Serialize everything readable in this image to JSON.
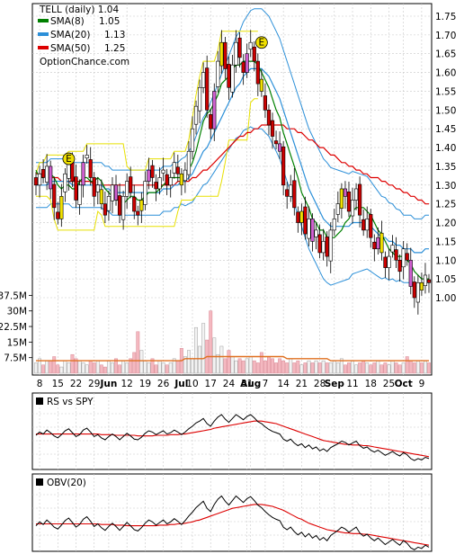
{
  "chart_data": [
    {
      "type": "candlestick",
      "title": "TELL (daily) 1.04",
      "watermark": "OptionChance.com",
      "legend_position": "top-left",
      "grid": true,
      "ylim": [
        0.93,
        1.78
      ],
      "yticks": [
        1.75,
        1.7,
        1.65,
        1.6,
        1.55,
        1.5,
        1.45,
        1.4,
        1.35,
        1.3,
        1.25,
        1.2,
        1.15,
        1.1,
        1.05,
        1.0
      ],
      "xticks": [
        {
          "label": "8",
          "i": 1
        },
        {
          "label": "15",
          "i": 6
        },
        {
          "label": "22",
          "i": 11
        },
        {
          "label": "29",
          "i": 16
        },
        {
          "label": "Jun",
          "i": 20,
          "bold": true
        },
        {
          "label": "12",
          "i": 25
        },
        {
          "label": "19",
          "i": 30
        },
        {
          "label": "26",
          "i": 35
        },
        {
          "label": "Jul",
          "i": 40,
          "bold": true
        },
        {
          "label": "10",
          "i": 43
        },
        {
          "label": "17",
          "i": 48
        },
        {
          "label": "24",
          "i": 53
        },
        {
          "label": "31",
          "i": 58
        },
        {
          "label": "Aug",
          "i": 59,
          "bold": true
        },
        {
          "label": "7",
          "i": 63
        },
        {
          "label": "14",
          "i": 68
        },
        {
          "label": "21",
          "i": 73
        },
        {
          "label": "28",
          "i": 78
        },
        {
          "label": "Sep",
          "i": 82,
          "bold": true
        },
        {
          "label": "11",
          "i": 87
        },
        {
          "label": "18",
          "i": 92
        },
        {
          "label": "25",
          "i": 97
        },
        {
          "label": "Oct",
          "i": 101,
          "bold": true
        },
        {
          "label": "9",
          "i": 106
        }
      ],
      "events": [
        {
          "label": "E",
          "i": 9,
          "price": 1.37
        },
        {
          "label": "E",
          "i": 62,
          "price": 1.68
        }
      ],
      "series": [
        {
          "name": "SMA(8)",
          "last": "1.05",
          "color": "#008000"
        },
        {
          "name": "SMA(20)",
          "last": "1.13",
          "color": "#2b8fd8"
        },
        {
          "name": "SMA(50)",
          "last": "1.25",
          "color": "#dd0000"
        }
      ],
      "close": [
        1.3,
        1.33,
        1.32,
        1.35,
        1.29,
        1.24,
        1.21,
        1.27,
        1.33,
        1.36,
        1.31,
        1.26,
        1.3,
        1.36,
        1.38,
        1.32,
        1.27,
        1.3,
        1.25,
        1.22,
        1.27,
        1.3,
        1.26,
        1.22,
        1.27,
        1.31,
        1.28,
        1.23,
        1.22,
        1.26,
        1.31,
        1.34,
        1.32,
        1.29,
        1.32,
        1.34,
        1.3,
        1.32,
        1.36,
        1.33,
        1.3,
        1.34,
        1.39,
        1.45,
        1.51,
        1.56,
        1.6,
        1.5,
        1.45,
        1.55,
        1.63,
        1.68,
        1.61,
        1.56,
        1.62,
        1.68,
        1.64,
        1.6,
        1.65,
        1.68,
        1.63,
        1.57,
        1.55,
        1.5,
        1.46,
        1.43,
        1.41,
        1.39,
        1.3,
        1.27,
        1.3,
        1.24,
        1.2,
        1.23,
        1.17,
        1.21,
        1.15,
        1.18,
        1.12,
        1.15,
        1.11,
        1.18,
        1.21,
        1.25,
        1.29,
        1.27,
        1.23,
        1.26,
        1.29,
        1.22,
        1.18,
        1.21,
        1.16,
        1.13,
        1.16,
        1.12,
        1.08,
        1.11,
        1.14,
        1.1,
        1.07,
        1.13,
        1.1,
        1.03,
        1.0,
        1.04,
        1.02,
        1.06,
        1.04
      ],
      "sma8": [
        1.34,
        1.32,
        1.32,
        1.33,
        1.33,
        1.32,
        1.3,
        1.29,
        1.3,
        1.3,
        1.29,
        1.29,
        1.31,
        1.32,
        1.32,
        1.31,
        1.31,
        1.32,
        1.31,
        1.29,
        1.28,
        1.27,
        1.26,
        1.26,
        1.25,
        1.26,
        1.27,
        1.27,
        1.26,
        1.26,
        1.27,
        1.28,
        1.28,
        1.28,
        1.29,
        1.3,
        1.31,
        1.32,
        1.32,
        1.32,
        1.32,
        1.33,
        1.34,
        1.36,
        1.39,
        1.43,
        1.47,
        1.49,
        1.5,
        1.52,
        1.54,
        1.57,
        1.58,
        1.59,
        1.61,
        1.62,
        1.62,
        1.63,
        1.63,
        1.63,
        1.63,
        1.62,
        1.6,
        1.58,
        1.56,
        1.53,
        1.5,
        1.48,
        1.44,
        1.41,
        1.38,
        1.35,
        1.32,
        1.28,
        1.26,
        1.24,
        1.21,
        1.2,
        1.18,
        1.18,
        1.16,
        1.16,
        1.16,
        1.17,
        1.18,
        1.2,
        1.21,
        1.23,
        1.24,
        1.24,
        1.24,
        1.23,
        1.22,
        1.2,
        1.18,
        1.17,
        1.15,
        1.13,
        1.12,
        1.11,
        1.11,
        1.11,
        1.1,
        1.09,
        1.07,
        1.06,
        1.05,
        1.05,
        1.05
      ],
      "sma20": [
        1.3,
        1.3,
        1.3,
        1.3,
        1.31,
        1.31,
        1.31,
        1.31,
        1.31,
        1.31,
        1.3,
        1.3,
        1.3,
        1.3,
        1.3,
        1.3,
        1.3,
        1.3,
        1.3,
        1.29,
        1.29,
        1.28,
        1.28,
        1.28,
        1.28,
        1.28,
        1.28,
        1.28,
        1.28,
        1.28,
        1.28,
        1.28,
        1.28,
        1.28,
        1.28,
        1.29,
        1.29,
        1.29,
        1.3,
        1.3,
        1.31,
        1.31,
        1.32,
        1.33,
        1.35,
        1.37,
        1.39,
        1.4,
        1.42,
        1.44,
        1.46,
        1.48,
        1.5,
        1.52,
        1.54,
        1.56,
        1.57,
        1.59,
        1.6,
        1.61,
        1.61,
        1.61,
        1.61,
        1.6,
        1.59,
        1.57,
        1.55,
        1.53,
        1.5,
        1.47,
        1.44,
        1.41,
        1.38,
        1.35,
        1.32,
        1.29,
        1.27,
        1.25,
        1.23,
        1.21,
        1.2,
        1.19,
        1.19,
        1.19,
        1.19,
        1.19,
        1.19,
        1.2,
        1.2,
        1.2,
        1.2,
        1.2,
        1.19,
        1.18,
        1.17,
        1.16,
        1.16,
        1.15,
        1.15,
        1.14,
        1.14,
        1.13,
        1.13,
        1.13,
        1.12,
        1.12,
        1.12,
        1.13,
        1.13
      ],
      "sma50": [
        1.33,
        1.33,
        1.33,
        1.32,
        1.32,
        1.32,
        1.32,
        1.31,
        1.31,
        1.31,
        1.31,
        1.31,
        1.31,
        1.31,
        1.31,
        1.31,
        1.3,
        1.3,
        1.3,
        1.3,
        1.3,
        1.3,
        1.3,
        1.3,
        1.3,
        1.3,
        1.3,
        1.3,
        1.3,
        1.3,
        1.3,
        1.3,
        1.3,
        1.3,
        1.3,
        1.3,
        1.3,
        1.3,
        1.3,
        1.31,
        1.31,
        1.31,
        1.31,
        1.32,
        1.32,
        1.33,
        1.34,
        1.34,
        1.35,
        1.36,
        1.37,
        1.38,
        1.39,
        1.4,
        1.41,
        1.42,
        1.43,
        1.43,
        1.44,
        1.44,
        1.45,
        1.45,
        1.46,
        1.46,
        1.46,
        1.46,
        1.46,
        1.46,
        1.46,
        1.45,
        1.45,
        1.45,
        1.44,
        1.44,
        1.43,
        1.42,
        1.42,
        1.41,
        1.4,
        1.4,
        1.39,
        1.38,
        1.38,
        1.37,
        1.36,
        1.36,
        1.35,
        1.35,
        1.34,
        1.34,
        1.33,
        1.33,
        1.32,
        1.32,
        1.32,
        1.31,
        1.31,
        1.3,
        1.3,
        1.29,
        1.29,
        1.28,
        1.28,
        1.27,
        1.27,
        1.26,
        1.26,
        1.25,
        1.25
      ]
    },
    {
      "type": "bar",
      "yticks": [
        "37.5M",
        "30M",
        "22.5M",
        "15M",
        "7.5M"
      ],
      "ytick_values": [
        37.5,
        30,
        22.5,
        15,
        7.5
      ],
      "ylim": [
        0,
        42
      ],
      "values": [
        5,
        7,
        4,
        6,
        6,
        8,
        4,
        3,
        6,
        5,
        9,
        7,
        6,
        5,
        4,
        6,
        5,
        6,
        4,
        3,
        6,
        5,
        7,
        4,
        6,
        5,
        7,
        10,
        20,
        11,
        6,
        5,
        7,
        4,
        6,
        5,
        4,
        5,
        7,
        6,
        12,
        8,
        11,
        7,
        22,
        13,
        24,
        16,
        30,
        17,
        9,
        13,
        7,
        11,
        8,
        6,
        7,
        6,
        7,
        8,
        6,
        5,
        10,
        6,
        8,
        7,
        5,
        7,
        6,
        5,
        7,
        5,
        6,
        4,
        5,
        6,
        5,
        6,
        5,
        6,
        5,
        5,
        6,
        5,
        7,
        4,
        5,
        6,
        4,
        5,
        6,
        5,
        4,
        5,
        6,
        4,
        5,
        4,
        6,
        5,
        4,
        5,
        8,
        6,
        5,
        6,
        5,
        6,
        5
      ],
      "avg": [
        6,
        6,
        6,
        6,
        6,
        6,
        6,
        6,
        6,
        6,
        6,
        6,
        6,
        6,
        6,
        6,
        6,
        6,
        6,
        6,
        6,
        6,
        6,
        6,
        6,
        6,
        6,
        6,
        6,
        6,
        6,
        6,
        6,
        6,
        6,
        6,
        6,
        6,
        6,
        6,
        6,
        7,
        7,
        7,
        7,
        7,
        7,
        8,
        8,
        8,
        8,
        8,
        8,
        8,
        8,
        8,
        8,
        8,
        8,
        8,
        8,
        8,
        8,
        8,
        8,
        8,
        8,
        8,
        8,
        7,
        7,
        7,
        7,
        7,
        7,
        7,
        7,
        7,
        7,
        7,
        7,
        6,
        6,
        6,
        6,
        6,
        6,
        6,
        6,
        6,
        6,
        6,
        6,
        6,
        6,
        6,
        6,
        6,
        6,
        6,
        6,
        6,
        6,
        6,
        6,
        6,
        6,
        6,
        6
      ]
    },
    {
      "type": "line",
      "legend": "RS vs SPY",
      "values": [
        0.5,
        0.55,
        0.52,
        0.58,
        0.54,
        0.49,
        0.46,
        0.51,
        0.57,
        0.6,
        0.54,
        0.48,
        0.51,
        0.58,
        0.61,
        0.55,
        0.48,
        0.51,
        0.46,
        0.43,
        0.48,
        0.52,
        0.48,
        0.43,
        0.48,
        0.53,
        0.49,
        0.44,
        0.43,
        0.47,
        0.53,
        0.57,
        0.55,
        0.51,
        0.54,
        0.57,
        0.52,
        0.54,
        0.58,
        0.55,
        0.51,
        0.55,
        0.6,
        0.64,
        0.69,
        0.72,
        0.76,
        0.68,
        0.64,
        0.72,
        0.78,
        0.82,
        0.75,
        0.7,
        0.76,
        0.82,
        0.78,
        0.74,
        0.79,
        0.82,
        0.77,
        0.71,
        0.68,
        0.63,
        0.59,
        0.56,
        0.54,
        0.52,
        0.44,
        0.41,
        0.44,
        0.38,
        0.34,
        0.37,
        0.31,
        0.35,
        0.29,
        0.32,
        0.26,
        0.29,
        0.25,
        0.31,
        0.34,
        0.37,
        0.41,
        0.39,
        0.35,
        0.38,
        0.41,
        0.34,
        0.3,
        0.32,
        0.27,
        0.24,
        0.27,
        0.23,
        0.19,
        0.22,
        0.25,
        0.21,
        0.18,
        0.23,
        0.2,
        0.14,
        0.11,
        0.14,
        0.12,
        0.16,
        0.14
      ],
      "ma": [
        0.52,
        0.52,
        0.52,
        0.52,
        0.52,
        0.52,
        0.52,
        0.52,
        0.52,
        0.52,
        0.52,
        0.52,
        0.52,
        0.52,
        0.52,
        0.52,
        0.52,
        0.52,
        0.51,
        0.51,
        0.51,
        0.51,
        0.5,
        0.5,
        0.5,
        0.5,
        0.5,
        0.5,
        0.49,
        0.49,
        0.49,
        0.49,
        0.49,
        0.5,
        0.5,
        0.5,
        0.5,
        0.51,
        0.51,
        0.51,
        0.52,
        0.52,
        0.53,
        0.54,
        0.55,
        0.56,
        0.57,
        0.58,
        0.59,
        0.61,
        0.62,
        0.63,
        0.64,
        0.65,
        0.66,
        0.67,
        0.68,
        0.69,
        0.7,
        0.71,
        0.72,
        0.72,
        0.72,
        0.71,
        0.7,
        0.69,
        0.68,
        0.66,
        0.64,
        0.62,
        0.6,
        0.58,
        0.56,
        0.54,
        0.52,
        0.5,
        0.48,
        0.46,
        0.44,
        0.42,
        0.41,
        0.4,
        0.39,
        0.38,
        0.37,
        0.36,
        0.36,
        0.35,
        0.35,
        0.35,
        0.34,
        0.34,
        0.33,
        0.32,
        0.31,
        0.3,
        0.29,
        0.28,
        0.27,
        0.26,
        0.25,
        0.24,
        0.23,
        0.22,
        0.21,
        0.2,
        0.19,
        0.18,
        0.17
      ]
    },
    {
      "type": "line",
      "legend": "OBV(20)",
      "values": [
        0.38,
        0.44,
        0.4,
        0.47,
        0.42,
        0.36,
        0.33,
        0.39,
        0.46,
        0.5,
        0.43,
        0.36,
        0.4,
        0.48,
        0.52,
        0.45,
        0.37,
        0.41,
        0.35,
        0.31,
        0.37,
        0.42,
        0.37,
        0.31,
        0.37,
        0.43,
        0.38,
        0.32,
        0.3,
        0.35,
        0.42,
        0.47,
        0.44,
        0.39,
        0.43,
        0.47,
        0.41,
        0.44,
        0.49,
        0.45,
        0.4,
        0.46,
        0.53,
        0.59,
        0.66,
        0.71,
        0.76,
        0.65,
        0.6,
        0.71,
        0.79,
        0.84,
        0.76,
        0.7,
        0.77,
        0.84,
        0.79,
        0.74,
        0.8,
        0.83,
        0.77,
        0.7,
        0.66,
        0.6,
        0.55,
        0.51,
        0.48,
        0.46,
        0.36,
        0.32,
        0.36,
        0.29,
        0.24,
        0.28,
        0.21,
        0.26,
        0.19,
        0.23,
        0.16,
        0.2,
        0.15,
        0.23,
        0.27,
        0.31,
        0.36,
        0.33,
        0.28,
        0.32,
        0.36,
        0.27,
        0.22,
        0.25,
        0.19,
        0.15,
        0.19,
        0.14,
        0.09,
        0.13,
        0.17,
        0.12,
        0.08,
        0.15,
        0.11,
        0.04,
        0.01,
        0.05,
        0.03,
        0.08,
        0.05
      ],
      "ma": [
        0.41,
        0.41,
        0.41,
        0.41,
        0.41,
        0.41,
        0.41,
        0.41,
        0.41,
        0.41,
        0.41,
        0.41,
        0.41,
        0.41,
        0.41,
        0.41,
        0.41,
        0.41,
        0.4,
        0.4,
        0.4,
        0.4,
        0.39,
        0.39,
        0.39,
        0.38,
        0.38,
        0.38,
        0.38,
        0.38,
        0.38,
        0.38,
        0.38,
        0.38,
        0.39,
        0.39,
        0.39,
        0.4,
        0.4,
        0.41,
        0.41,
        0.42,
        0.43,
        0.44,
        0.46,
        0.47,
        0.49,
        0.51,
        0.53,
        0.55,
        0.57,
        0.59,
        0.61,
        0.63,
        0.65,
        0.66,
        0.67,
        0.68,
        0.69,
        0.7,
        0.71,
        0.71,
        0.71,
        0.7,
        0.69,
        0.68,
        0.66,
        0.64,
        0.62,
        0.59,
        0.56,
        0.53,
        0.5,
        0.48,
        0.45,
        0.42,
        0.4,
        0.38,
        0.36,
        0.34,
        0.32,
        0.31,
        0.3,
        0.29,
        0.28,
        0.27,
        0.27,
        0.26,
        0.26,
        0.26,
        0.25,
        0.25,
        0.24,
        0.23,
        0.22,
        0.21,
        0.2,
        0.19,
        0.18,
        0.17,
        0.16,
        0.15,
        0.14,
        0.13,
        0.12,
        0.11,
        0.1,
        0.09,
        0.08
      ]
    }
  ]
}
